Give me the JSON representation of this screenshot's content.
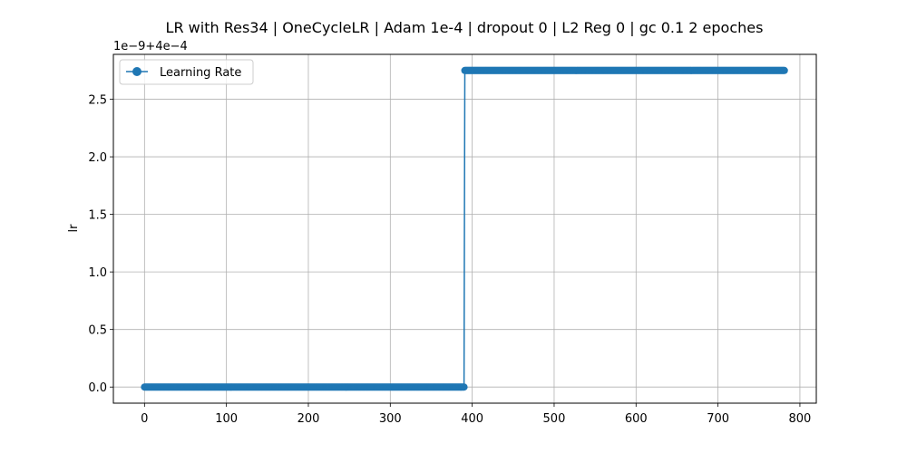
{
  "chart_data": {
    "type": "line",
    "title": "LR with Res34 | OneCycleLR | Adam 1e-4 | dropout 0 | L2 Reg 0 | gc 0.1 2 epoches",
    "xlabel": "",
    "ylabel": "lr",
    "offset_label": "1e−9+4e−4",
    "xlim": [
      -38,
      820
    ],
    "ylim": [
      -0.14,
      2.89
    ],
    "xticks": [
      0,
      100,
      200,
      300,
      400,
      500,
      600,
      700,
      800
    ],
    "xtick_labels": [
      "0",
      "100",
      "200",
      "300",
      "400",
      "500",
      "600",
      "700",
      "800"
    ],
    "yticks": [
      0.0,
      0.5,
      1.0,
      1.5,
      2.0,
      2.5
    ],
    "ytick_labels": [
      "0.0",
      "0.5",
      "1.0",
      "1.5",
      "2.0",
      "2.5"
    ],
    "grid": true,
    "legend_position": "upper left",
    "series": [
      {
        "name": "Learning Rate",
        "color": "#1f77b4",
        "marker": "circle",
        "segments": [
          {
            "x_start": 0,
            "x_end": 390,
            "step": 1,
            "value": 0.0
          },
          {
            "x_start": 391,
            "x_end": 781,
            "step": 1,
            "value": 2.75
          }
        ]
      }
    ]
  }
}
